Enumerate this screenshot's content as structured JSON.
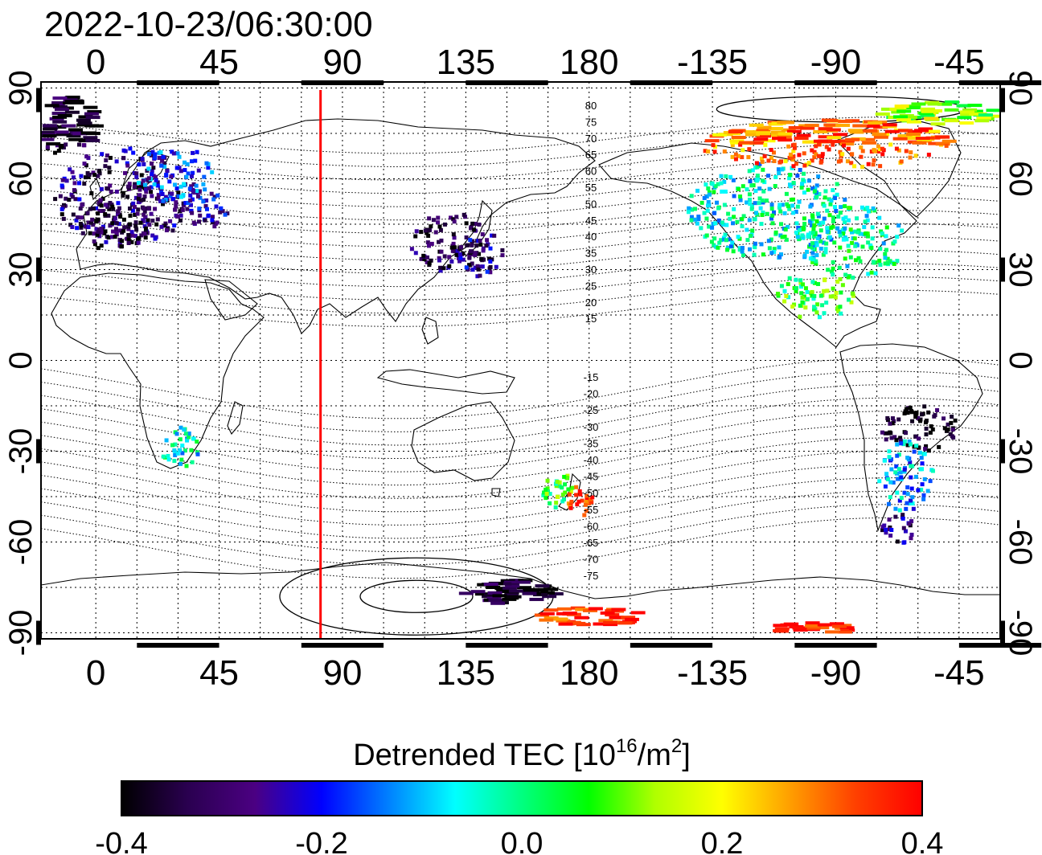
{
  "timestamp": "2022-10-23/06:30:00",
  "map": {
    "lon_tick_labels": [
      "0",
      "45",
      "90",
      "135",
      "180",
      "-135",
      "-90",
      "-45"
    ],
    "lat_tick_labels": [
      "90",
      "60",
      "30",
      "0",
      "-30",
      "-60",
      "-90"
    ],
    "lon_range_deg": [
      -20,
      330
    ],
    "lat_range_deg": [
      -92,
      92
    ],
    "grid": "dotted",
    "red_line_longitude": 82,
    "red_line_color": "#ff0000",
    "contour_labels_north": [
      "80",
      "75",
      "70",
      "65",
      "60",
      "55",
      "50",
      "45",
      "40",
      "35",
      "30",
      "25",
      "20",
      "15"
    ],
    "contour_labels_south": [
      "-15",
      "-20",
      "-25",
      "-30",
      "-35",
      "-40",
      "-45",
      "-50",
      "-55",
      "-60",
      "-65",
      "-70",
      "-75"
    ]
  },
  "colorbar": {
    "title_prefix": "Detrended TEC  [10",
    "title_exp1": "16",
    "title_mid": "/m",
    "title_exp2": "2",
    "title_suffix": "]",
    "tick_labels": [
      "-0.4",
      "-0.2",
      "0.0",
      "0.2",
      "0.4"
    ],
    "range": [
      -0.4,
      0.4
    ],
    "colors": [
      "#000000",
      "#2a0050",
      "#4b0082",
      "#0000ff",
      "#0080ff",
      "#00ffff",
      "#00ff80",
      "#00ff00",
      "#b0ff00",
      "#ffff00",
      "#ffa000",
      "#ff4000",
      "#ff0000"
    ]
  },
  "tec_patches": [
    {
      "lon": -12,
      "lat": 78,
      "rx": 10,
      "ry": 10,
      "v": -0.38
    },
    {
      "lon": 10,
      "lat": 55,
      "rx": 26,
      "ry": 16,
      "v": -0.3
    },
    {
      "lon": 28,
      "lat": 62,
      "rx": 14,
      "ry": 10,
      "v": -0.18
    },
    {
      "lon": 5,
      "lat": 45,
      "rx": 14,
      "ry": 8,
      "v": -0.36
    },
    {
      "lon": 40,
      "lat": 50,
      "rx": 8,
      "ry": 6,
      "v": -0.25
    },
    {
      "lon": 128,
      "lat": 40,
      "rx": 14,
      "ry": 10,
      "v": -0.34
    },
    {
      "lon": 140,
      "lat": 36,
      "rx": 8,
      "ry": 8,
      "v": -0.28
    },
    {
      "lon": 30,
      "lat": -28,
      "rx": 7,
      "ry": 7,
      "v": -0.05
    },
    {
      "lon": 168,
      "lat": -42,
      "rx": 7,
      "ry": 6,
      "v": 0.05
    },
    {
      "lon": 176,
      "lat": -46,
      "rx": 5,
      "ry": 5,
      "v": 0.36
    },
    {
      "lon": 245,
      "lat": 50,
      "rx": 30,
      "ry": 16,
      "v": -0.05
    },
    {
      "lon": 275,
      "lat": 40,
      "rx": 20,
      "ry": 12,
      "v": -0.02
    },
    {
      "lon": 265,
      "lat": 72,
      "rx": 45,
      "ry": 8,
      "v": 0.3
    },
    {
      "lon": 305,
      "lat": 82,
      "rx": 22,
      "ry": 4,
      "v": 0.12
    },
    {
      "lon": 262,
      "lat": 22,
      "rx": 14,
      "ry": 8,
      "v": 0.05
    },
    {
      "lon": 300,
      "lat": -22,
      "rx": 14,
      "ry": 8,
      "v": -0.38
    },
    {
      "lon": 295,
      "lat": -38,
      "rx": 10,
      "ry": 12,
      "v": -0.12
    },
    {
      "lon": 292,
      "lat": -55,
      "rx": 6,
      "ry": 5,
      "v": -0.3
    },
    {
      "lon": 178,
      "lat": -84,
      "rx": 20,
      "ry": 3,
      "v": 0.36
    },
    {
      "lon": 150,
      "lat": -76,
      "rx": 18,
      "ry": 4,
      "v": -0.38
    },
    {
      "lon": 260,
      "lat": -88,
      "rx": 15,
      "ry": 2,
      "v": 0.4
    }
  ]
}
